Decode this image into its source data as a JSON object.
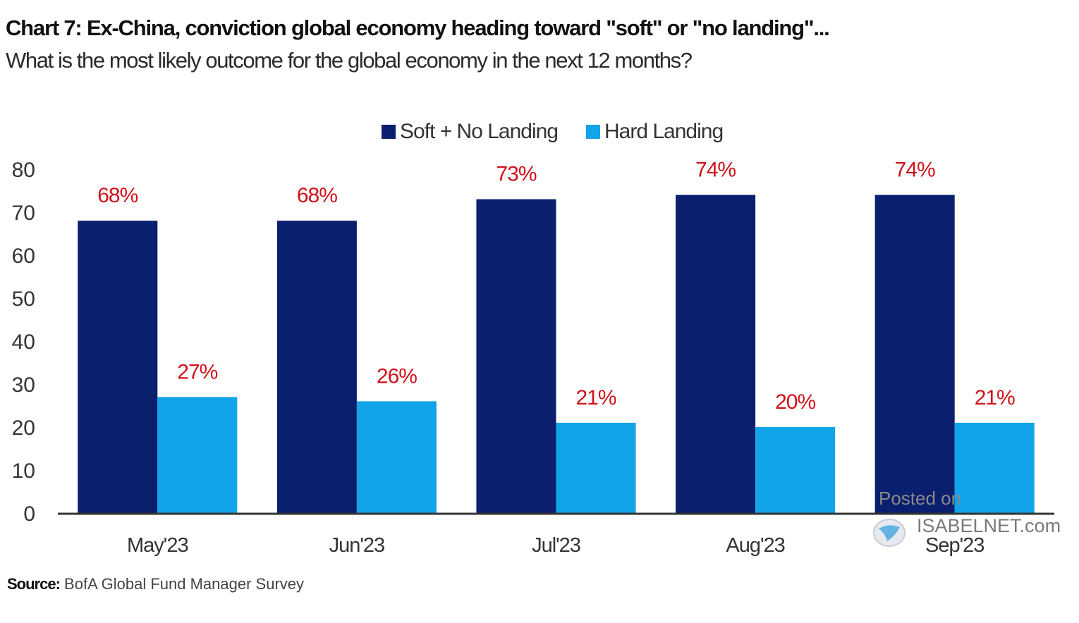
{
  "chart_data": {
    "type": "bar",
    "title": "Chart 7: Ex-China, conviction global economy heading toward \"soft\" or \"no landing\"...",
    "subtitle": "What is the most likely outcome for the global economy in the next 12 months?",
    "xlabel": "",
    "ylabel": "",
    "categories": [
      "May'23",
      "Jun'23",
      "Jul'23",
      "Aug'23",
      "Sep'23"
    ],
    "series": [
      {
        "name": "Soft + No Landing",
        "color": "#0a1f6e",
        "values": [
          68,
          68,
          73,
          74,
          74
        ],
        "labels": [
          "68%",
          "68%",
          "73%",
          "74%",
          "74%"
        ]
      },
      {
        "name": "Hard Landing",
        "color": "#11a4e8",
        "values": [
          27,
          26,
          21,
          20,
          21
        ],
        "labels": [
          "27%",
          "26%",
          "21%",
          "20%",
          "21%"
        ]
      }
    ],
    "ylim": [
      0,
      80
    ],
    "yticks": [
      0,
      10,
      20,
      30,
      40,
      50,
      60,
      70,
      80
    ],
    "grid": false,
    "legend_position": "top-center",
    "data_label_color": "#d0121b"
  },
  "source": {
    "label": "Source:",
    "text": "BofA Global Fund Manager Survey"
  },
  "watermark": {
    "posted": "Posted on",
    "site": "ISABELNET.com"
  }
}
